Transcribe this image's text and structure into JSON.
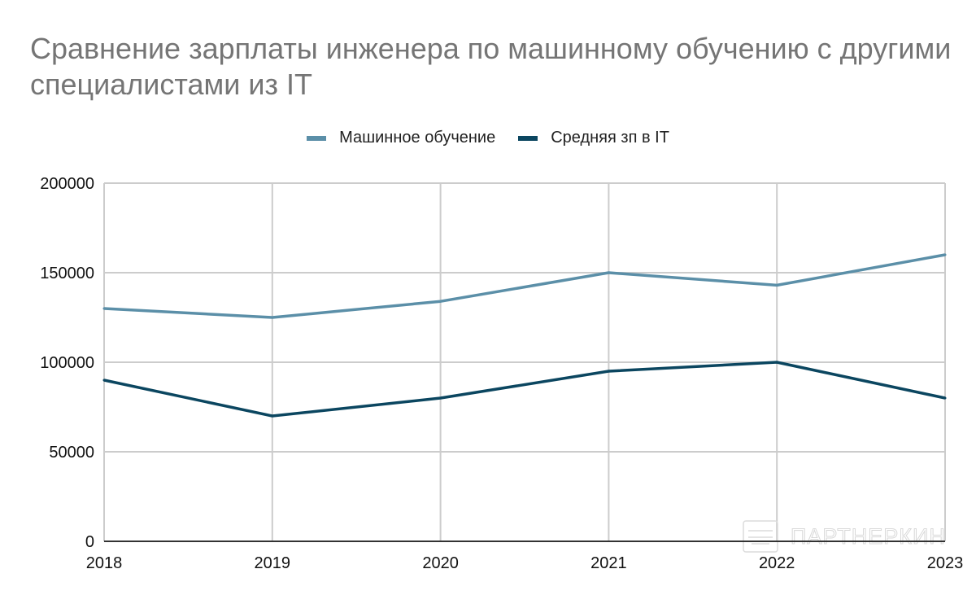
{
  "chart_data": {
    "type": "line",
    "title": "Сравнение зарплаты инженера по машинному обучению с другими специалистами из IT",
    "xlabel": "",
    "ylabel": "",
    "categories": [
      "2018",
      "2019",
      "2020",
      "2021",
      "2022",
      "2023"
    ],
    "ylim": [
      0,
      200000
    ],
    "yticks": [
      "0",
      "50000",
      "100000",
      "150000",
      "200000"
    ],
    "ytick_values": [
      0,
      50000,
      100000,
      150000,
      200000
    ],
    "grid": true,
    "legend_position": "top-center",
    "series": [
      {
        "name": "Машинное обучение",
        "color": "#5b8fa8",
        "values": [
          130000,
          125000,
          134000,
          150000,
          143000,
          160000
        ]
      },
      {
        "name": "Средняя зп в IT",
        "color": "#0b4660",
        "values": [
          90000,
          70000,
          80000,
          95000,
          100000,
          80000
        ]
      }
    ]
  },
  "watermark": "ПАРТНЕРКИН",
  "colors": {
    "grid": "#cccccc",
    "axis": "#333333",
    "title": "#757575"
  }
}
